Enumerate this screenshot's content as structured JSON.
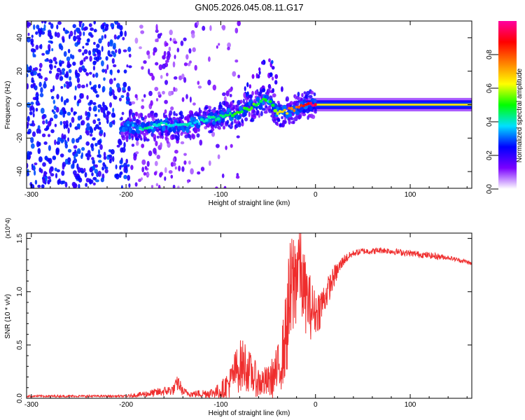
{
  "figure_title": "GN05.2026.045.08.11.G17",
  "chart_data": [
    {
      "type": "heatmap",
      "title": "GN05.2026.045.08.11.G17",
      "xlabel": "Height of straight line (km)",
      "ylabel": "Frequency (Hz)",
      "xlim": [
        -305,
        165
      ],
      "ylim": [
        -50,
        50
      ],
      "x_ticks": [
        -300,
        -200,
        -100,
        0,
        100
      ],
      "y_ticks": [
        -40,
        -20,
        0,
        20,
        40
      ],
      "colorbar": {
        "label": "Normalized spectral amplitude",
        "range": [
          0,
          1
        ],
        "ticks": [
          "0.0",
          "0.2",
          "0.4",
          "0.6",
          "0.8"
        ],
        "colors": [
          "#ffffff",
          "#7a00ff",
          "#0000ff",
          "#00e0ff",
          "#00ff00",
          "#ffff00",
          "#ff8000",
          "#ff0000",
          "#ff00a0"
        ]
      },
      "ridge": {
        "x": [
          -200,
          -180,
          -160,
          -140,
          -120,
          -100,
          -80,
          -60,
          -50,
          -40,
          -30,
          -20,
          -10,
          0,
          20,
          50,
          100,
          160
        ],
        "freq": [
          -13,
          -14,
          -12,
          -13,
          -10,
          -7,
          -5,
          1,
          3,
          -5,
          -4,
          -2,
          0,
          0,
          0,
          0,
          0,
          0
        ],
        "amplitude": [
          0.3,
          0.4,
          0.4,
          0.4,
          0.4,
          0.45,
          0.5,
          0.5,
          0.45,
          0.6,
          0.7,
          0.8,
          0.9,
          0.95,
          0.7,
          0.65,
          0.6,
          0.55
        ]
      },
      "noise_region_x": [
        -305,
        -110
      ]
    },
    {
      "type": "line",
      "xlabel": "Height of straight line (km)",
      "ylabel": "SNR (10 * v/v)",
      "y_multiplier": "(x10^4)",
      "xlim": [
        -305,
        165
      ],
      "ylim": [
        0,
        1.55
      ],
      "x_ticks": [
        -300,
        -200,
        -100,
        0,
        100
      ],
      "y_ticks": [
        "0.0",
        "0.5",
        "1.0",
        "1.5"
      ],
      "series": [
        {
          "name": "SNR",
          "color": "#ef2d2d",
          "x": [
            -305,
            -250,
            -200,
            -170,
            -150,
            -145,
            -140,
            -130,
            -110,
            -100,
            -90,
            -85,
            -80,
            -75,
            -70,
            -60,
            -50,
            -45,
            -40,
            -35,
            -32,
            -28,
            -25,
            -20,
            -17,
            -15,
            -10,
            -5,
            0,
            5,
            10,
            20,
            30,
            40,
            50,
            60,
            70,
            80,
            90,
            100,
            110,
            120,
            130,
            140,
            150,
            160,
            165
          ],
          "y": [
            0.02,
            0.02,
            0.02,
            0.05,
            0.08,
            0.15,
            0.06,
            0.04,
            0.05,
            0.07,
            0.15,
            0.25,
            0.3,
            0.32,
            0.25,
            0.15,
            0.15,
            0.2,
            0.25,
            0.4,
            0.55,
            0.85,
            1.0,
            1.2,
            1.35,
            1.1,
            0.95,
            0.85,
            0.8,
            0.85,
            0.95,
            1.15,
            1.3,
            1.36,
            1.38,
            1.38,
            1.39,
            1.38,
            1.37,
            1.36,
            1.35,
            1.34,
            1.33,
            1.32,
            1.3,
            1.28,
            1.26
          ]
        }
      ],
      "noise_amplitude": [
        0.01,
        0.01,
        0.01,
        0.04,
        0.05,
        0.08,
        0.04,
        0.03,
        0.05,
        0.08,
        0.15,
        0.2,
        0.25,
        0.25,
        0.2,
        0.15,
        0.15,
        0.2,
        0.25,
        0.3,
        0.4,
        0.55,
        0.6,
        0.5,
        0.45,
        0.4,
        0.35,
        0.3,
        0.2,
        0.2,
        0.15,
        0.1,
        0.05,
        0.03,
        0.03,
        0.03,
        0.03,
        0.03,
        0.03,
        0.03,
        0.03,
        0.03,
        0.03,
        0.02,
        0.02,
        0.02,
        0.02
      ]
    }
  ]
}
